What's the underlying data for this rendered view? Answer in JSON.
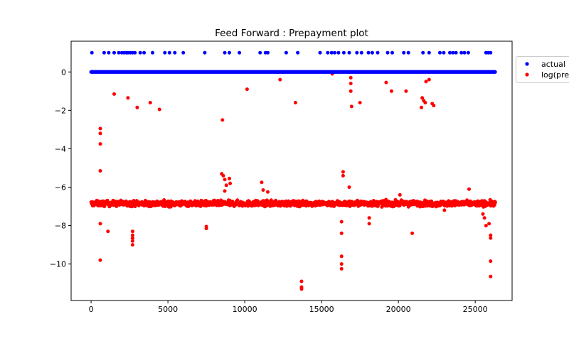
{
  "chart_data": {
    "type": "scatter",
    "title": "Feed Forward : Prepayment plot",
    "xlabel": "",
    "ylabel": "",
    "xlim": [
      -1300,
      27400
    ],
    "ylim": [
      -11.9,
      1.6
    ],
    "x_ticks": [
      0,
      5000,
      10000,
      15000,
      20000,
      25000
    ],
    "x_tick_labels": [
      "0",
      "5000",
      "10000",
      "15000",
      "20000",
      "25000"
    ],
    "y_ticks": [
      0,
      -2,
      -4,
      -6,
      -8,
      -10
    ],
    "y_tick_labels": [
      "0",
      "−2",
      "−4",
      "−6",
      "−8",
      "−10"
    ],
    "grid": false,
    "legend_position": "right, outside plot (clipped)",
    "series": [
      {
        "name": "actual",
        "color": "#0000ff",
        "marker": "circle",
        "baseline_range": {
          "x": [
            0,
            26300
          ],
          "y": 0
        },
        "points": [
          [
            50,
            1
          ],
          [
            850,
            1
          ],
          [
            1150,
            1
          ],
          [
            1500,
            1
          ],
          [
            1800,
            1
          ],
          [
            2000,
            1
          ],
          [
            2150,
            1
          ],
          [
            2300,
            1
          ],
          [
            2400,
            1
          ],
          [
            2550,
            1
          ],
          [
            2700,
            1
          ],
          [
            2850,
            1
          ],
          [
            3200,
            1
          ],
          [
            3450,
            1
          ],
          [
            4000,
            1
          ],
          [
            4800,
            1
          ],
          [
            5100,
            1
          ],
          [
            5450,
            1
          ],
          [
            6000,
            1
          ],
          [
            7400,
            1
          ],
          [
            8700,
            1
          ],
          [
            9000,
            1
          ],
          [
            9650,
            1
          ],
          [
            11000,
            1
          ],
          [
            11350,
            1
          ],
          [
            11500,
            1
          ],
          [
            12700,
            1
          ],
          [
            13450,
            1
          ],
          [
            14900,
            1
          ],
          [
            15400,
            1
          ],
          [
            15650,
            1
          ],
          [
            15850,
            1
          ],
          [
            16100,
            1
          ],
          [
            16450,
            1
          ],
          [
            16800,
            1
          ],
          [
            17300,
            1
          ],
          [
            17600,
            1
          ],
          [
            18050,
            1
          ],
          [
            18300,
            1
          ],
          [
            18650,
            1
          ],
          [
            19300,
            1
          ],
          [
            19600,
            1
          ],
          [
            20350,
            1
          ],
          [
            20650,
            1
          ],
          [
            21600,
            1
          ],
          [
            22000,
            1
          ],
          [
            22700,
            1
          ],
          [
            22950,
            1
          ],
          [
            23350,
            1
          ],
          [
            23550,
            1
          ],
          [
            23750,
            1
          ],
          [
            24100,
            1
          ],
          [
            24300,
            1
          ],
          [
            24550,
            1
          ],
          [
            25700,
            1
          ],
          [
            25850,
            1
          ],
          [
            26000,
            1
          ]
        ]
      },
      {
        "name": "log(pre",
        "color": "#ff0000",
        "marker": "circle",
        "band": {
          "x": [
            0,
            26300
          ],
          "y_center": -6.85,
          "y_spread": 0.25
        },
        "points": [
          [
            100,
            0
          ],
          [
            500,
            0
          ],
          [
            900,
            0
          ],
          [
            1400,
            0
          ],
          [
            1900,
            0
          ],
          [
            2600,
            0
          ],
          [
            3100,
            0
          ],
          [
            3700,
            0
          ],
          [
            4300,
            0
          ],
          [
            4900,
            0
          ],
          [
            5600,
            0
          ],
          [
            6200,
            0
          ],
          [
            7000,
            0
          ],
          [
            7800,
            0
          ],
          [
            8600,
            0
          ],
          [
            9200,
            0
          ],
          [
            9900,
            0
          ],
          [
            10600,
            0
          ],
          [
            11300,
            0
          ],
          [
            12000,
            0
          ],
          [
            12200,
            0
          ],
          [
            12500,
            0
          ],
          [
            13000,
            0
          ],
          [
            13600,
            0
          ],
          [
            14300,
            0
          ],
          [
            15000,
            0
          ],
          [
            15500,
            0
          ],
          [
            16200,
            0
          ],
          [
            16800,
            0
          ],
          [
            17400,
            0
          ],
          [
            18100,
            0
          ],
          [
            18800,
            0
          ],
          [
            19500,
            0
          ],
          [
            20200,
            0
          ],
          [
            20900,
            0
          ],
          [
            21600,
            0
          ],
          [
            22300,
            0
          ],
          [
            23000,
            0
          ],
          [
            23700,
            0
          ],
          [
            24400,
            0
          ],
          [
            25100,
            0
          ],
          [
            25800,
            0
          ],
          [
            26200,
            0
          ],
          [
            1500,
            -1.15
          ],
          [
            2400,
            -1.35
          ],
          [
            3000,
            -1.85
          ],
          [
            3850,
            -1.6
          ],
          [
            4450,
            -1.95
          ],
          [
            10150,
            -0.9
          ],
          [
            12300,
            -0.4
          ],
          [
            13300,
            -1.6
          ],
          [
            15700,
            -0.1
          ],
          [
            16900,
            -0.3
          ],
          [
            16900,
            -0.6
          ],
          [
            16900,
            -1.0
          ],
          [
            16950,
            -1.8
          ],
          [
            17500,
            -1.6
          ],
          [
            19200,
            -0.55
          ],
          [
            19550,
            -1.0
          ],
          [
            20500,
            -1.0
          ],
          [
            21500,
            -1.85
          ],
          [
            21550,
            -1.35
          ],
          [
            21650,
            -1.5
          ],
          [
            21750,
            -1.6
          ],
          [
            22000,
            -0.4
          ],
          [
            21800,
            -0.5
          ],
          [
            22200,
            -1.65
          ],
          [
            22300,
            -1.75
          ],
          [
            600,
            -2.95
          ],
          [
            600,
            -3.2
          ],
          [
            600,
            -3.75
          ],
          [
            600,
            -5.15
          ],
          [
            600,
            -7.9
          ],
          [
            600,
            -9.8
          ],
          [
            1100,
            -8.3
          ],
          [
            2700,
            -8.3
          ],
          [
            2700,
            -8.5
          ],
          [
            2700,
            -8.65
          ],
          [
            2700,
            -8.8
          ],
          [
            2700,
            -9.0
          ],
          [
            7500,
            -8.05
          ],
          [
            7500,
            -8.15
          ],
          [
            8550,
            -2.5
          ],
          [
            8500,
            -5.3
          ],
          [
            8600,
            -5.4
          ],
          [
            8700,
            -5.6
          ],
          [
            8800,
            -5.9
          ],
          [
            8700,
            -6.2
          ],
          [
            9000,
            -5.55
          ],
          [
            9050,
            -5.8
          ],
          [
            11100,
            -5.75
          ],
          [
            11200,
            -6.15
          ],
          [
            11500,
            -6.25
          ],
          [
            13700,
            -10.9
          ],
          [
            13700,
            -11.2
          ],
          [
            13700,
            -11.3
          ],
          [
            16300,
            -7.8
          ],
          [
            16300,
            -8.4
          ],
          [
            16300,
            -9.6
          ],
          [
            16300,
            -10.0
          ],
          [
            16300,
            -10.25
          ],
          [
            16400,
            -5.2
          ],
          [
            16400,
            -5.4
          ],
          [
            16800,
            -6.0
          ],
          [
            18100,
            -7.6
          ],
          [
            18100,
            -7.9
          ],
          [
            20900,
            -8.4
          ],
          [
            25500,
            -7.4
          ],
          [
            25600,
            -7.6
          ],
          [
            25700,
            -8.0
          ],
          [
            25900,
            -7.9
          ],
          [
            26000,
            -8.5
          ],
          [
            26000,
            -8.65
          ],
          [
            26000,
            -9.85
          ],
          [
            26000,
            -10.65
          ],
          [
            24600,
            -6.1
          ],
          [
            23000,
            -7.2
          ],
          [
            20100,
            -6.4
          ],
          [
            3900,
            -7.0
          ]
        ]
      }
    ]
  }
}
